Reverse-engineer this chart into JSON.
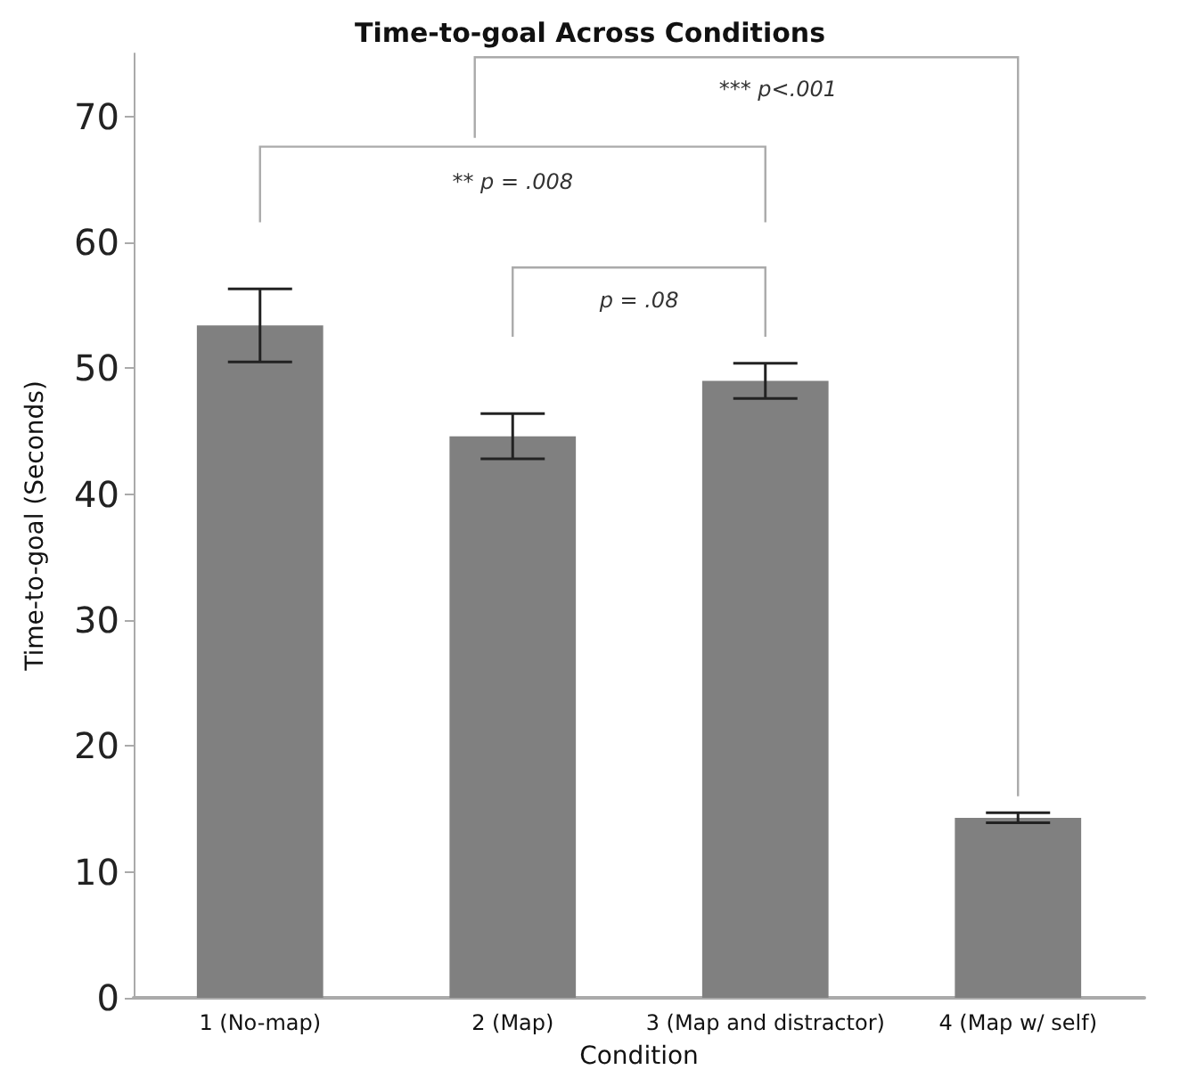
{
  "chart_data": {
    "type": "bar",
    "title": "Time-to-goal Across Conditions",
    "xlabel": "Condition",
    "ylabel": "Time-to-goal (Seconds)",
    "categories": [
      "1 (No-map)",
      "2 (Map)",
      "3 (Map and distractor)",
      "4 (Map w/ self)"
    ],
    "values": [
      53.4,
      44.6,
      49.0,
      14.3
    ],
    "errors": [
      2.9,
      1.8,
      1.4,
      0.4
    ],
    "color": "#808080",
    "ylim": [
      0,
      75
    ],
    "yticks": [
      0,
      10,
      20,
      30,
      40,
      50,
      60,
      70
    ],
    "grid": false,
    "annotations": [
      "** p = .008",
      "p = .08",
      "*** p<.001"
    ]
  }
}
